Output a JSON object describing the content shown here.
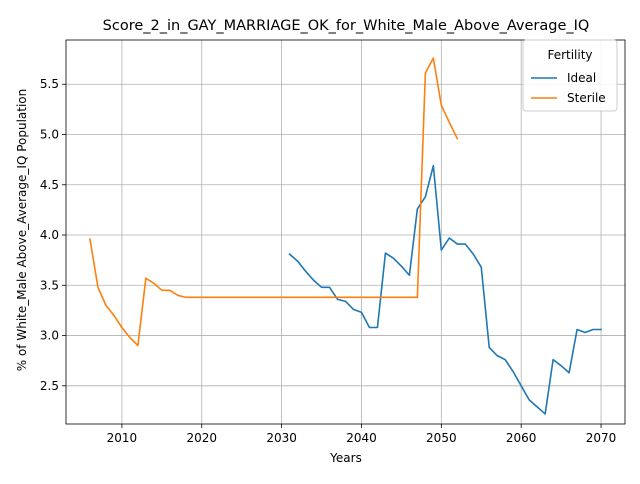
{
  "chart_data": {
    "type": "line",
    "title": "Score_2_in_GAY_MARRIAGE_OK_for_White_Male_Above_Average_IQ",
    "xlabel": "Years",
    "ylabel": "% of White_Male Above_Average_IQ Population",
    "xlim": [
      2003,
      2073
    ],
    "ylim": [
      2.12,
      5.94
    ],
    "xticks": [
      2010,
      2020,
      2030,
      2040,
      2050,
      2060,
      2070
    ],
    "yticks": [
      2.5,
      3.0,
      3.5,
      4.0,
      4.5,
      5.0,
      5.5
    ],
    "xtick_labels": [
      "2010",
      "2020",
      "2030",
      "2040",
      "2050",
      "2060",
      "2070"
    ],
    "ytick_labels": [
      "2.5",
      "3.0",
      "3.5",
      "4.0",
      "4.5",
      "5.0",
      "5.5"
    ],
    "grid": true,
    "legend": {
      "title": "Fertility",
      "placement": "upper right"
    },
    "series": [
      {
        "name": "Ideal",
        "color": "#1f77b4",
        "x": [
          2031,
          2032,
          2033,
          2034,
          2035,
          2036,
          2037,
          2038,
          2039,
          2040,
          2041,
          2042,
          2043,
          2044,
          2045,
          2046,
          2047,
          2048,
          2049,
          2050,
          2051,
          2052,
          2053,
          2054,
          2055,
          2056,
          2057,
          2058,
          2059,
          2060,
          2061,
          2062,
          2063,
          2064,
          2065,
          2066,
          2067,
          2068,
          2069,
          2070
        ],
        "y": [
          3.81,
          3.74,
          3.64,
          3.55,
          3.48,
          3.48,
          3.36,
          3.34,
          3.26,
          3.23,
          3.08,
          3.08,
          3.82,
          3.77,
          3.69,
          3.6,
          4.26,
          4.38,
          4.69,
          3.85,
          3.97,
          3.91,
          3.91,
          3.81,
          3.68,
          2.88,
          2.8,
          2.76,
          2.64,
          2.5,
          2.36,
          2.29,
          2.22,
          2.76,
          2.7,
          2.63,
          3.06,
          3.03,
          3.06,
          3.06
        ]
      },
      {
        "name": "Sterile",
        "color": "#ff7f0e",
        "x": [
          2006,
          2007,
          2008,
          2009,
          2010,
          2011,
          2012,
          2013,
          2014,
          2015,
          2016,
          2017,
          2018,
          2019,
          2020,
          2021,
          2022,
          2023,
          2024,
          2025,
          2026,
          2027,
          2028,
          2029,
          2030,
          2031,
          2032,
          2033,
          2034,
          2035,
          2036,
          2037,
          2038,
          2039,
          2040,
          2041,
          2042,
          2043,
          2044,
          2045,
          2046,
          2047,
          2048,
          2049,
          2050,
          2051,
          2052
        ],
        "y": [
          3.96,
          3.48,
          3.3,
          3.2,
          3.08,
          2.98,
          2.9,
          3.57,
          3.52,
          3.45,
          3.45,
          3.4,
          3.38,
          3.38,
          3.38,
          3.38,
          3.38,
          3.38,
          3.38,
          3.38,
          3.38,
          3.38,
          3.38,
          3.38,
          3.38,
          3.38,
          3.38,
          3.38,
          3.38,
          3.38,
          3.38,
          3.38,
          3.38,
          3.38,
          3.38,
          3.38,
          3.38,
          3.38,
          3.38,
          3.38,
          3.38,
          3.38,
          5.61,
          5.76,
          5.29,
          5.12,
          4.96
        ]
      }
    ]
  }
}
